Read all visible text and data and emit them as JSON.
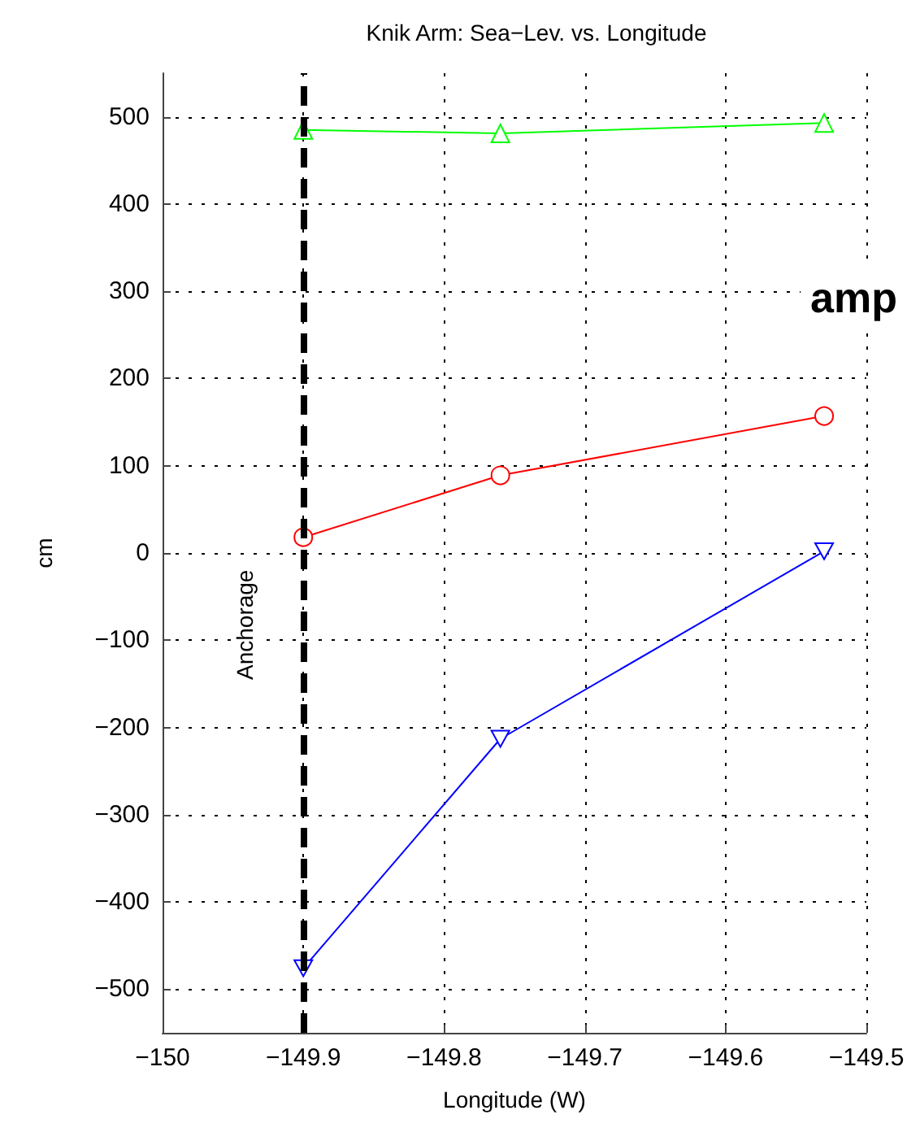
{
  "chart_data": {
    "type": "line",
    "title": "Knik Arm: Sea−Lev. vs. Longitude",
    "xlabel": "Longitude (W)",
    "ylabel": "cm",
    "x": [
      -149.9,
      -149.76,
      -149.53
    ],
    "series": [
      {
        "color": "#00ff00",
        "marker": "triangle",
        "values": [
          485,
          481,
          493
        ]
      },
      {
        "color": "#ff0000",
        "marker": "circle",
        "values": [
          18,
          89,
          157
        ]
      },
      {
        "color": "#0000ff",
        "marker": "triangle-down",
        "values": [
          -476,
          -213,
          2
        ]
      }
    ],
    "xlim": [
      -150,
      -149.5
    ],
    "xticks": [
      -150,
      -149.9,
      -149.8,
      -149.7,
      -149.6,
      -149.5
    ],
    "ylim": [
      -550,
      550
    ],
    "yticks": [
      -500,
      -400,
      -300,
      -200,
      -100,
      0,
      100,
      200,
      300,
      400,
      500
    ],
    "grid": true,
    "line_style": "solid",
    "ref_lines": [
      {
        "axis": "x",
        "value": -149.9,
        "label": "Anchorage",
        "color": "#000000",
        "line_style": "dashed"
      }
    ],
    "annotations": [
      "amp"
    ]
  }
}
